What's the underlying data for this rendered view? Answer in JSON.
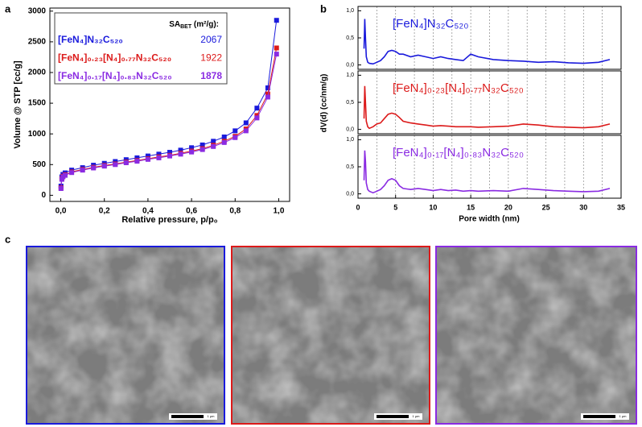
{
  "panel_labels": [
    "a",
    "b",
    "c"
  ],
  "images": [
    {
      "color": "#1a1adc",
      "scale_bar": "1 μm"
    },
    {
      "color": "#dc1a1a",
      "scale_bar": "1 μm"
    },
    {
      "color": "#8a2be2",
      "scale_bar": "1 μm"
    }
  ],
  "chart_data": [
    {
      "type": "line",
      "xlabel": "Relative pressure, p/p₀",
      "ylabel": "Volume @ STP [cc/g]",
      "xlim": [
        -0.05,
        1.05
      ],
      "ylim": [
        -100,
        3050
      ],
      "xticks": [
        {
          "value": 0,
          "label": "0,0"
        },
        {
          "value": 0.2,
          "label": "0,2"
        },
        {
          "value": 0.4,
          "label": "0,4"
        },
        {
          "value": 0.6,
          "label": "0,6"
        },
        {
          "value": 0.8,
          "label": "0,8"
        },
        {
          "value": 1,
          "label": "1,0"
        }
      ],
      "yticks": [
        0,
        500,
        1000,
        1500,
        2000,
        2500,
        3000
      ],
      "legend_title_parts": [
        {
          "text": "SA"
        },
        {
          "text": "BET",
          "sub": true
        },
        {
          "text": " (m²/g):"
        }
      ],
      "series": [
        {
          "name": "[FeN₄]N₃₂C₅₂₀",
          "color": "#1a1adc",
          "sa_bet": 2067,
          "x": [
            0.001,
            0.005,
            0.01,
            0.02,
            0.05,
            0.1,
            0.15,
            0.2,
            0.25,
            0.3,
            0.35,
            0.4,
            0.45,
            0.5,
            0.55,
            0.6,
            0.65,
            0.7,
            0.75,
            0.8,
            0.85,
            0.9,
            0.95,
            0.99
          ],
          "values": [
            150,
            300,
            340,
            365,
            410,
            450,
            490,
            520,
            550,
            580,
            610,
            640,
            670,
            700,
            735,
            775,
            820,
            880,
            950,
            1050,
            1180,
            1420,
            1750,
            2850
          ]
        },
        {
          "name": "[FeN₄]₀.₂₃[N₄]₀.₇₇N₃₂C₅₂₀",
          "color": "#dc1a1a",
          "sa_bet": 1922,
          "x": [
            0.001,
            0.005,
            0.01,
            0.02,
            0.05,
            0.1,
            0.15,
            0.2,
            0.25,
            0.3,
            0.35,
            0.4,
            0.45,
            0.5,
            0.55,
            0.6,
            0.65,
            0.7,
            0.75,
            0.8,
            0.85,
            0.9,
            0.95,
            0.99
          ],
          "values": [
            120,
            270,
            310,
            335,
            380,
            420,
            455,
            485,
            510,
            540,
            565,
            595,
            625,
            650,
            685,
            720,
            760,
            815,
            880,
            960,
            1080,
            1300,
            1650,
            2400
          ]
        },
        {
          "name": "[FeN₄]₀.₁₇[N₄]₀.₈₃N₃₂C₅₂₀",
          "color": "#8a2be2",
          "sa_bet": 1878,
          "x": [
            0.001,
            0.005,
            0.01,
            0.02,
            0.05,
            0.1,
            0.15,
            0.2,
            0.25,
            0.3,
            0.35,
            0.4,
            0.45,
            0.5,
            0.55,
            0.6,
            0.65,
            0.7,
            0.75,
            0.8,
            0.85,
            0.9,
            0.95,
            0.99
          ],
          "values": [
            110,
            260,
            300,
            325,
            370,
            410,
            445,
            475,
            500,
            530,
            555,
            585,
            610,
            640,
            670,
            705,
            745,
            795,
            860,
            940,
            1050,
            1260,
            1600,
            2300
          ]
        }
      ]
    },
    {
      "type": "line",
      "xlim": [
        0,
        35
      ],
      "ylim": [
        -0.08,
        1.08
      ],
      "yticks": [
        {
          "value": 0,
          "label": "0,0"
        },
        {
          "value": 0.5,
          "label": "0,5"
        },
        {
          "value": 1,
          "label": "1,0"
        }
      ],
      "xgrid": [
        2.5,
        5,
        7.5,
        10,
        12.5,
        15,
        17.5,
        20,
        22.5,
        25,
        27.5,
        30,
        32.5
      ],
      "series": [
        {
          "name": "[FeN₄]N₃₂C₅₂₀",
          "color": "#1a1adc",
          "x": [
            0.8,
            0.9,
            1.0,
            1.1,
            1.3,
            1.5,
            2,
            2.5,
            3,
            3.5,
            4,
            4.5,
            5,
            5.5,
            6,
            7,
            8,
            9,
            10,
            11,
            12,
            13,
            14,
            15,
            16,
            18,
            20,
            22,
            24,
            26,
            28,
            30,
            32,
            33.5
          ],
          "values": [
            0.3,
            0.85,
            0.5,
            0.15,
            0.05,
            0.03,
            0.02,
            0.05,
            0.08,
            0.15,
            0.25,
            0.27,
            0.25,
            0.2,
            0.2,
            0.15,
            0.18,
            0.15,
            0.12,
            0.15,
            0.12,
            0.1,
            0.08,
            0.2,
            0.15,
            0.1,
            0.08,
            0.07,
            0.05,
            0.06,
            0.04,
            0.03,
            0.05,
            0.1
          ]
        }
      ]
    },
    {
      "type": "line",
      "xlim": [
        0,
        35
      ],
      "ylim": [
        -0.08,
        1.08
      ],
      "ylabel": "dV(d) (cc/nm/g)",
      "yticks": [
        {
          "value": 0,
          "label": "0,0"
        },
        {
          "value": 0.5,
          "label": "0,5"
        },
        {
          "value": 1,
          "label": "1,0"
        }
      ],
      "xgrid": [
        2.5,
        5,
        7.5,
        10,
        12.5,
        15,
        17.5,
        20,
        22.5,
        25,
        27.5,
        30,
        32.5
      ],
      "series": [
        {
          "name": "[FeN₄]₀.₂₃[N₄]₀.₇₇N₃₂C₅₂₀",
          "color": "#dc1a1a",
          "x": [
            0.8,
            0.9,
            1.0,
            1.1,
            1.3,
            1.5,
            2,
            2.5,
            3,
            3.5,
            4,
            4.5,
            5,
            5.5,
            6,
            7,
            8,
            9,
            10,
            11,
            12,
            13,
            14,
            15,
            16,
            18,
            20,
            22,
            24,
            26,
            28,
            30,
            32,
            33.5
          ],
          "values": [
            0.2,
            0.8,
            0.5,
            0.15,
            0.05,
            0.02,
            0.05,
            0.1,
            0.12,
            0.2,
            0.28,
            0.3,
            0.28,
            0.22,
            0.15,
            0.12,
            0.1,
            0.08,
            0.06,
            0.07,
            0.06,
            0.05,
            0.05,
            0.05,
            0.04,
            0.05,
            0.06,
            0.1,
            0.08,
            0.05,
            0.04,
            0.03,
            0.05,
            0.1
          ]
        }
      ]
    },
    {
      "type": "line",
      "xlim": [
        0,
        35
      ],
      "ylim": [
        -0.08,
        1.08
      ],
      "xlabel": "Pore width (nm)",
      "xticks": [
        0,
        5,
        10,
        15,
        20,
        25,
        30,
        35
      ],
      "yticks": [
        {
          "value": 0,
          "label": "0,0"
        },
        {
          "value": 0.5,
          "label": "0,5"
        },
        {
          "value": 1,
          "label": "1,0"
        }
      ],
      "xgrid": [
        2.5,
        5,
        7.5,
        10,
        12.5,
        15,
        17.5,
        20,
        22.5,
        25,
        27.5,
        30,
        32.5
      ],
      "series": [
        {
          "name": "[FeN₄]₀.₁₇[N₄]₀.₈₃N₃₂C₅₂₀",
          "color": "#8a2be2",
          "x": [
            0.8,
            0.9,
            1.0,
            1.1,
            1.3,
            1.5,
            2,
            2.5,
            3,
            3.5,
            4,
            4.5,
            5,
            5.5,
            6,
            7,
            8,
            9,
            10,
            11,
            12,
            13,
            14,
            15,
            16,
            18,
            20,
            22,
            24,
            26,
            28,
            30,
            32,
            33.5
          ],
          "values": [
            0.25,
            0.8,
            0.6,
            0.2,
            0.08,
            0.05,
            0.02,
            0.05,
            0.08,
            0.15,
            0.25,
            0.28,
            0.25,
            0.15,
            0.1,
            0.08,
            0.1,
            0.08,
            0.06,
            0.08,
            0.06,
            0.07,
            0.05,
            0.06,
            0.05,
            0.06,
            0.05,
            0.1,
            0.08,
            0.06,
            0.05,
            0.04,
            0.05,
            0.1
          ]
        }
      ]
    }
  ]
}
